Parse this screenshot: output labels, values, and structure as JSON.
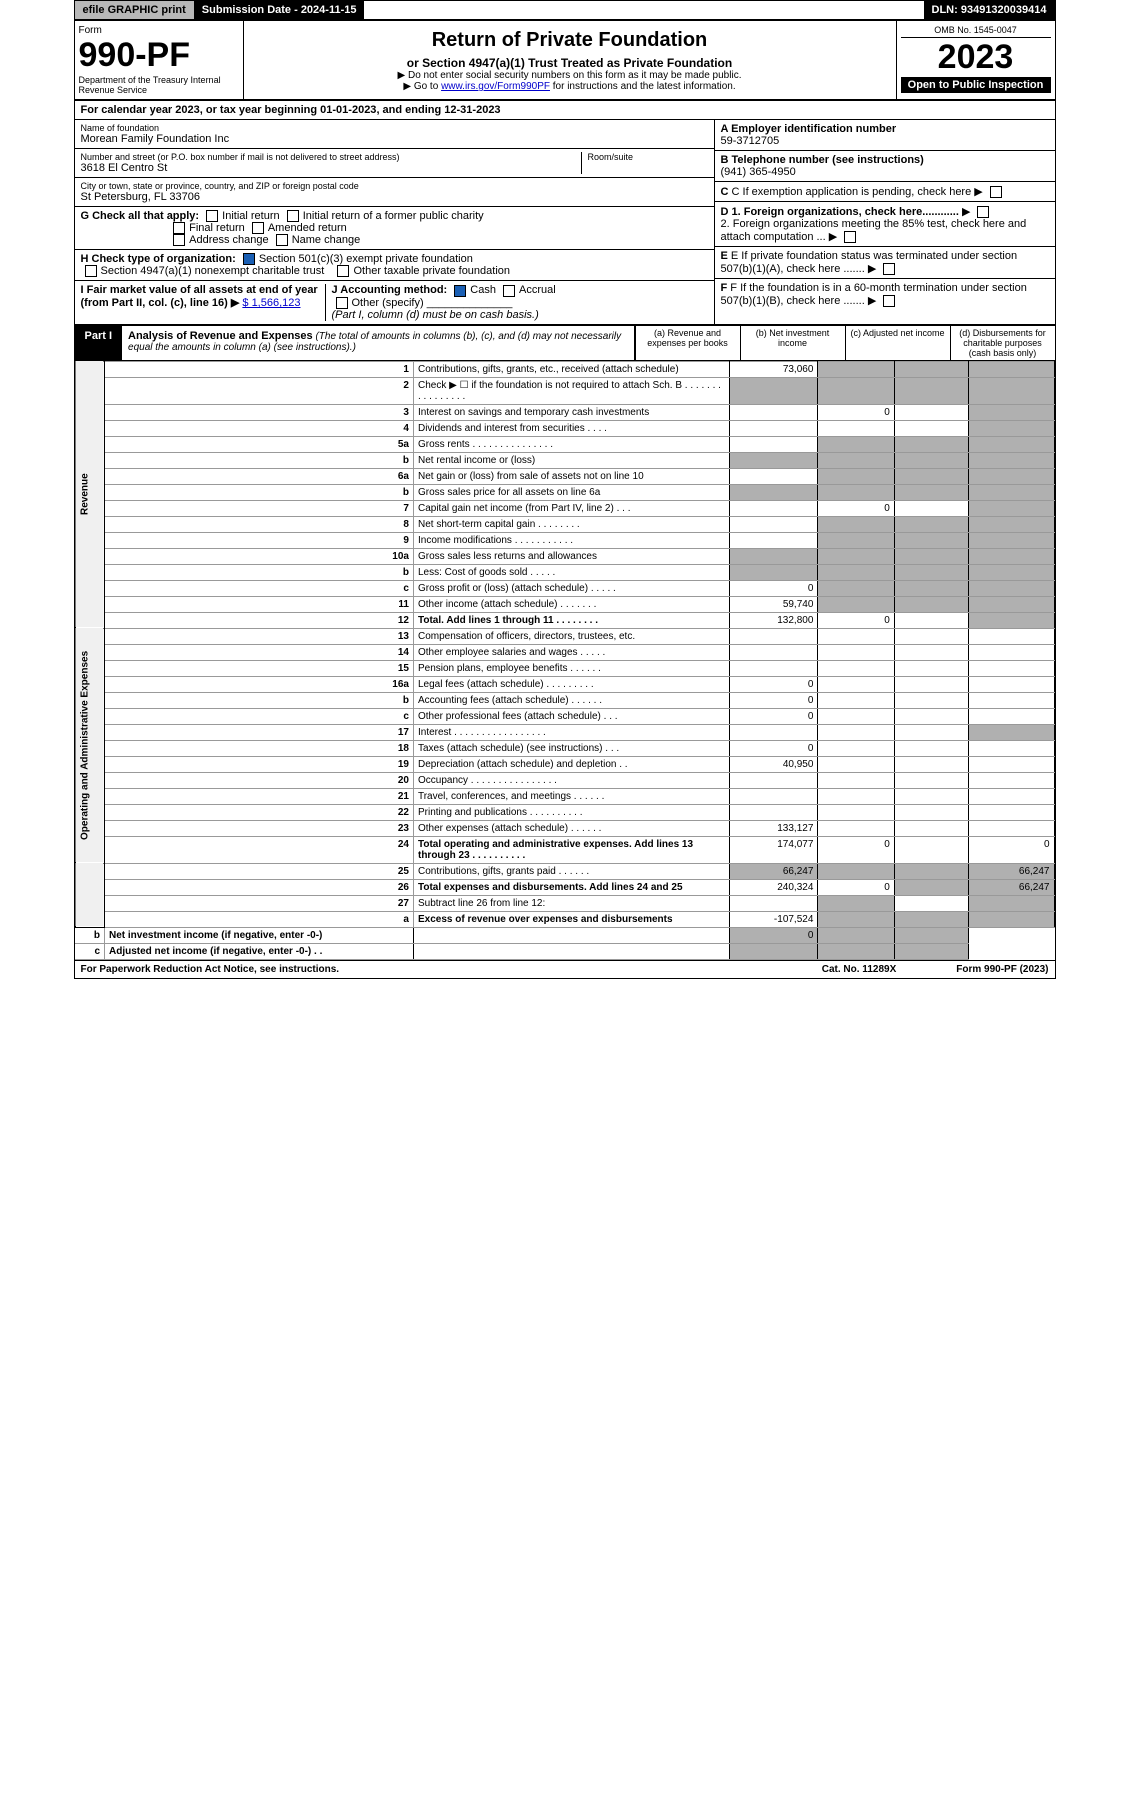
{
  "topbar": {
    "efile": "efile GRAPHIC print",
    "subm": "Submission Date - 2024-11-15",
    "dln": "DLN: 93491320039414"
  },
  "hdr": {
    "form": "Form",
    "num": "990-PF",
    "dept": "Department of the Treasury\nInternal Revenue Service",
    "title": "Return of Private Foundation",
    "sub": "or Section 4947(a)(1) Trust Treated as Private Foundation",
    "note1": "▶ Do not enter social security numbers on this form as it may be made public.",
    "note2": "▶ Go to ",
    "url": "www.irs.gov/Form990PF",
    "note3": " for instructions and the latest information.",
    "omb": "OMB No. 1545-0047",
    "year": "2023",
    "open": "Open to Public Inspection"
  },
  "calendar": {
    "pre": "For calendar year 2023, or tax year beginning ",
    "start": "01-01-2023",
    "mid": ", and ending ",
    "end": "12-31-2023"
  },
  "info": {
    "name_lbl": "Name of foundation",
    "name": "Morean Family Foundation Inc",
    "addr_lbl": "Number and street (or P.O. box number if mail is not delivered to street address)",
    "addr": "3618 El Centro St",
    "room": "Room/suite",
    "city_lbl": "City or town, state or province, country, and ZIP or foreign postal code",
    "city": "St Petersburg, FL 33706",
    "a_lbl": "A Employer identification number",
    "a": "59-3712705",
    "b_lbl": "B Telephone number (see instructions)",
    "b": "(941) 365-4950",
    "c": "C If exemption application is pending, check here",
    "d1": "D 1. Foreign organizations, check here............",
    "d2": "2. Foreign organizations meeting the 85% test, check here and attach computation ...",
    "e": "E If private foundation status was terminated under section 507(b)(1)(A), check here .......",
    "f": "F If the foundation is in a 60-month termination under section 507(b)(1)(B), check here .......",
    "g": "G Check all that apply:",
    "g_opts": [
      "Initial return",
      "Initial return of a former public charity",
      "Final return",
      "Amended return",
      "Address change",
      "Name change"
    ],
    "h": "H Check type of organization:",
    "h1": "Section 501(c)(3) exempt private foundation",
    "h2": "Section 4947(a)(1) nonexempt charitable trust",
    "h3": "Other taxable private foundation",
    "i": "I Fair market value of all assets at end of year (from Part II, col. (c), line 16) ▶",
    "i_val": "$ 1,566,123",
    "j": "J Accounting method:",
    "j1": "Cash",
    "j2": "Accrual",
    "j3": "Other (specify)",
    "j_note": "(Part I, column (d) must be on cash basis.)"
  },
  "part1": {
    "label": "Part I",
    "title": "Analysis of Revenue and Expenses",
    "title_note": "(The total of amounts in columns (b), (c), and (d) may not necessarily equal the amounts in column (a) (see instructions).)",
    "cols": [
      "(a) Revenue and expenses per books",
      "(b) Net investment income",
      "(c) Adjusted net income",
      "(d) Disbursements for charitable purposes (cash basis only)"
    ]
  },
  "sections": {
    "rev": "Revenue",
    "exp": "Operating and Administrative Expenses"
  },
  "lines": [
    {
      "n": "1",
      "d": "Contributions, gifts, grants, etc., received (attach schedule)",
      "a": "73,060"
    },
    {
      "n": "2",
      "d": "Check ▶ ☐ if the foundation is not required to attach Sch. B   . . . . . . . . . . . . . . . ."
    },
    {
      "n": "3",
      "d": "Interest on savings and temporary cash investments",
      "b": "0"
    },
    {
      "n": "4",
      "d": "Dividends and interest from securities   . . . ."
    },
    {
      "n": "5a",
      "d": "Gross rents   . . . . . . . . . . . . . . ."
    },
    {
      "n": "b",
      "d": "Net rental income or (loss)"
    },
    {
      "n": "6a",
      "d": "Net gain or (loss) from sale of assets not on line 10"
    },
    {
      "n": "b",
      "d": "Gross sales price for all assets on line 6a"
    },
    {
      "n": "7",
      "d": "Capital gain net income (from Part IV, line 2)   . . .",
      "b": "0"
    },
    {
      "n": "8",
      "d": "Net short-term capital gain   . . . . . . . ."
    },
    {
      "n": "9",
      "d": "Income modifications   . . . . . . . . . . ."
    },
    {
      "n": "10a",
      "d": "Gross sales less returns and allowances"
    },
    {
      "n": "b",
      "d": "Less: Cost of goods sold   . . . . ."
    },
    {
      "n": "c",
      "d": "Gross profit or (loss) (attach schedule)   . . . . .",
      "a": "0"
    },
    {
      "n": "11",
      "d": "Other income (attach schedule)   . . . . . . .",
      "a": "59,740"
    },
    {
      "n": "12",
      "d": "Total. Add lines 1 through 11   . . . . . . . .",
      "a": "132,800",
      "b": "0",
      "bold": true
    },
    {
      "n": "13",
      "d": "Compensation of officers, directors, trustees, etc."
    },
    {
      "n": "14",
      "d": "Other employee salaries and wages   . . . . ."
    },
    {
      "n": "15",
      "d": "Pension plans, employee benefits   . . . . . ."
    },
    {
      "n": "16a",
      "d": "Legal fees (attach schedule)   . . . . . . . . .",
      "a": "0"
    },
    {
      "n": "b",
      "d": "Accounting fees (attach schedule)   . . . . . .",
      "a": "0"
    },
    {
      "n": "c",
      "d": "Other professional fees (attach schedule)   . . .",
      "a": "0"
    },
    {
      "n": "17",
      "d": "Interest   . . . . . . . . . . . . . . . . ."
    },
    {
      "n": "18",
      "d": "Taxes (attach schedule) (see instructions)   . . .",
      "a": "0"
    },
    {
      "n": "19",
      "d": "Depreciation (attach schedule) and depletion   . .",
      "a": "40,950"
    },
    {
      "n": "20",
      "d": "Occupancy   . . . . . . . . . . . . . . . ."
    },
    {
      "n": "21",
      "d": "Travel, conferences, and meetings   . . . . . ."
    },
    {
      "n": "22",
      "d": "Printing and publications   . . . . . . . . . ."
    },
    {
      "n": "23",
      "d": "Other expenses (attach schedule)   . . . . . .",
      "a": "133,127"
    },
    {
      "n": "24",
      "d": "Total operating and administrative expenses. Add lines 13 through 23   . . . . . . . . . .",
      "a": "174,077",
      "b": "0",
      "dd": "0",
      "bold": true
    },
    {
      "n": "25",
      "d": "Contributions, gifts, grants paid   . . . . . .",
      "a": "66,247",
      "dd": "66,247"
    },
    {
      "n": "26",
      "d": "Total expenses and disbursements. Add lines 24 and 25",
      "a": "240,324",
      "b": "0",
      "dd": "66,247",
      "bold": true
    },
    {
      "n": "27",
      "d": "Subtract line 26 from line 12:"
    },
    {
      "n": "a",
      "d": "Excess of revenue over expenses and disbursements",
      "a": "-107,524",
      "bold": true
    },
    {
      "n": "b",
      "d": "Net investment income (if negative, enter -0-)",
      "b": "0",
      "bold": true
    },
    {
      "n": "c",
      "d": "Adjusted net income (if negative, enter -0-)   . .",
      "bold": true
    }
  ],
  "footer": {
    "left": "For Paperwork Reduction Act Notice, see instructions.",
    "cat": "Cat. No. 11289X",
    "right": "Form 990-PF (2023)"
  }
}
